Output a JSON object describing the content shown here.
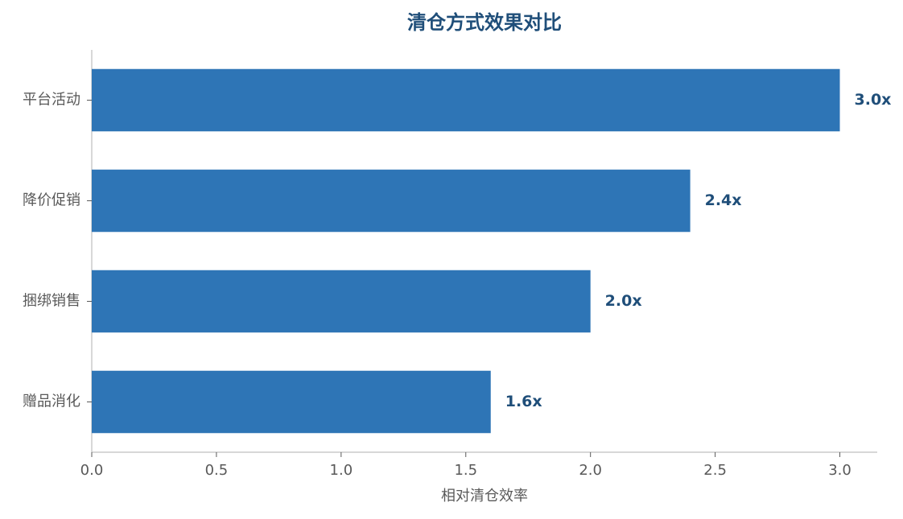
{
  "chart_data": {
    "type": "bar",
    "orientation": "horizontal",
    "title": "清仓方式效果对比",
    "x_label": "相对清仓效率",
    "categories": [
      "平台活动",
      "降价促销",
      "捆绑销售",
      "赠品消化"
    ],
    "values": [
      3.0,
      2.4,
      2.0,
      1.6
    ],
    "value_labels": [
      "3.0x",
      "2.4x",
      "2.0x",
      "1.6x"
    ],
    "color": "#2e75b6",
    "xlim": [
      0,
      3.15
    ],
    "xticks": [
      {
        "value": 0,
        "label": "0.0"
      },
      0.5,
      {
        "value": 1,
        "label": "1.0"
      },
      1.5,
      {
        "value": 2,
        "label": "2.0"
      },
      2.5,
      {
        "value": 3,
        "label": "3.0"
      }
    ],
    "grid": false
  }
}
